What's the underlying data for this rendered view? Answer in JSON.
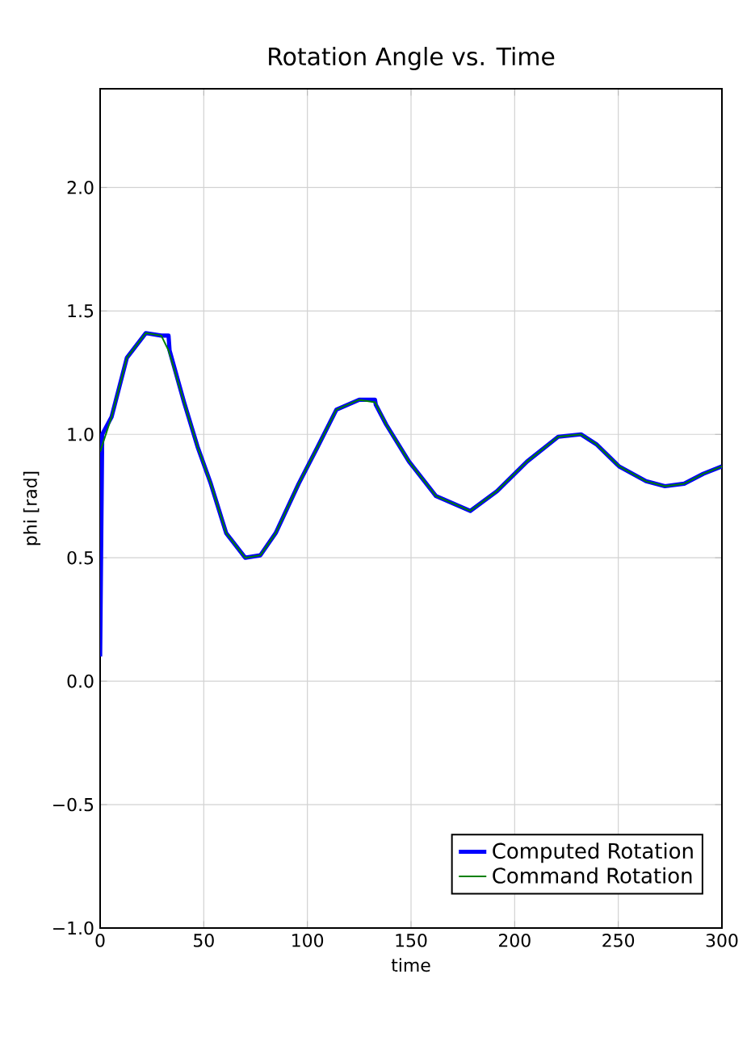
{
  "chart_data": {
    "type": "line",
    "title": "Rotation Angle vs. Time",
    "xlabel": "time",
    "ylabel": "phi [rad]",
    "xlim": [
      0,
      300
    ],
    "ylim": [
      -1.0,
      2.4
    ],
    "xticks": [
      0,
      50,
      100,
      150,
      200,
      250,
      300
    ],
    "yticks": [
      {
        "value": -1.0,
        "label": "−1.0"
      },
      {
        "value": -0.5,
        "label": "−0.5"
      },
      {
        "value": 0,
        "label": "0.0"
      },
      {
        "value": 0.5,
        "label": "0.5"
      },
      {
        "value": 1.0,
        "label": "1.0"
      },
      {
        "value": 1.5,
        "label": "1.5"
      },
      {
        "value": 2.0,
        "label": "2.0"
      }
    ],
    "grid": true,
    "legend": "bottom right",
    "line_style": "solid",
    "marker": "none",
    "series": [
      {
        "name": "Computed Rotation",
        "color": "#0000ff",
        "x": [
          0,
          1,
          5.5,
          12.9,
          22,
          29.5,
          33,
          33.5,
          40.5,
          47,
          53.4,
          60.8,
          70,
          77.3,
          84.7,
          95.8,
          105,
          114,
          125,
          132.6,
          133,
          138,
          149,
          162,
          178.6,
          191.5,
          206,
          221,
          232,
          239.4,
          250.4,
          263.4,
          272.5,
          281.8,
          291,
          300
        ],
        "values": [
          0.1,
          1.0,
          1.07,
          1.31,
          1.41,
          1.4,
          1.4,
          1.34,
          1.13,
          0.95,
          0.8,
          0.6,
          0.5,
          0.51,
          0.6,
          0.8,
          0.95,
          1.1,
          1.14,
          1.14,
          1.12,
          1.04,
          0.89,
          0.75,
          0.69,
          0.77,
          0.89,
          0.99,
          1.0,
          0.96,
          0.87,
          0.81,
          0.79,
          0.8,
          0.84,
          0.87
        ]
      },
      {
        "name": "Command Rotation",
        "color": "#008000",
        "x": [
          0,
          5.5,
          12.9,
          22,
          29.5,
          33,
          40.5,
          47,
          53.4,
          60.8,
          70,
          77.3,
          84.7,
          95.8,
          105,
          114,
          125,
          132.6,
          138,
          149,
          162,
          178.6,
          191.5,
          206,
          221,
          232,
          239.4,
          250.4,
          263.4,
          272.5,
          281.8,
          291,
          300
        ],
        "values": [
          0.93,
          1.07,
          1.31,
          1.41,
          1.4,
          1.34,
          1.13,
          0.95,
          0.8,
          0.6,
          0.5,
          0.51,
          0.6,
          0.8,
          0.95,
          1.1,
          1.14,
          1.13,
          1.04,
          0.89,
          0.75,
          0.69,
          0.77,
          0.89,
          0.99,
          1.0,
          0.96,
          0.87,
          0.81,
          0.79,
          0.8,
          0.84,
          0.87
        ]
      }
    ]
  }
}
